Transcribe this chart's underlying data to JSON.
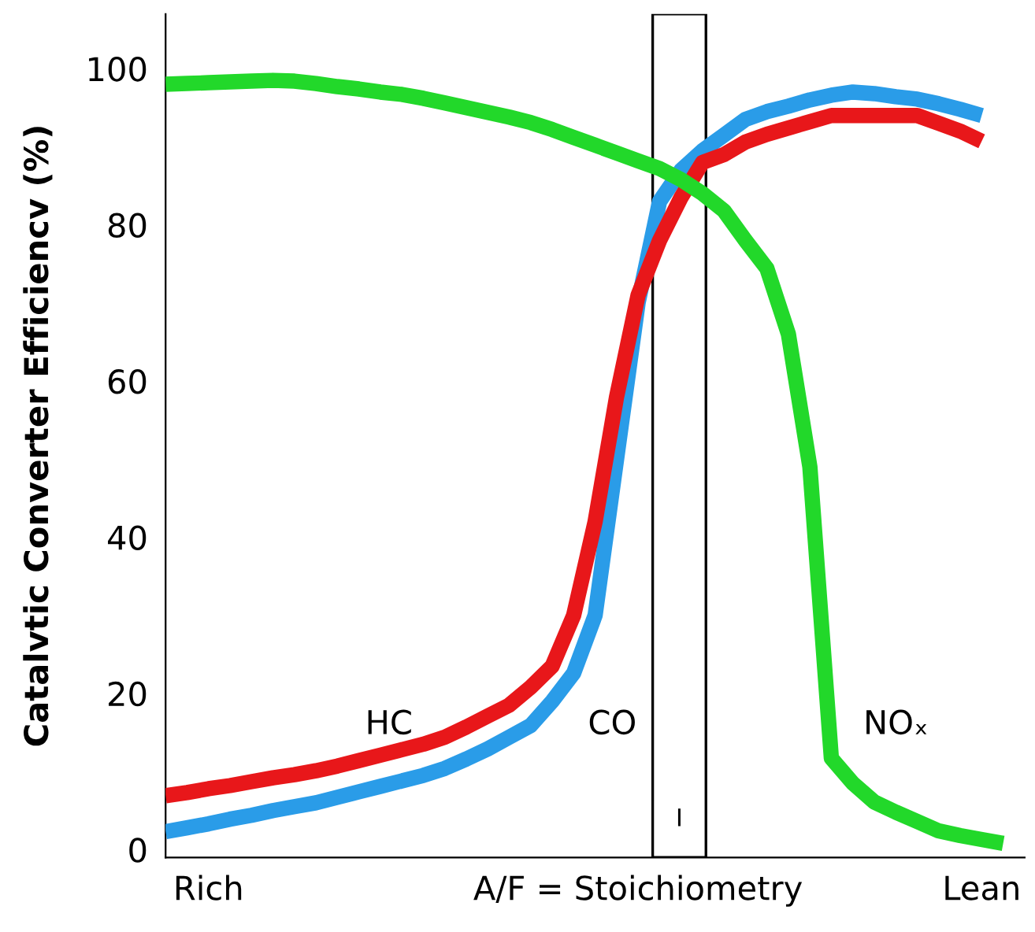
{
  "chart_data": {
    "type": "line",
    "ylabel": "Catalvtic Converter Efficiencv (%)",
    "categories": [
      null,
      null,
      "Rich",
      null,
      null,
      null,
      null,
      null,
      null,
      null,
      null,
      null,
      null,
      null,
      null,
      null,
      null,
      null,
      null,
      null,
      null,
      null,
      "A/F = Stoichiometry",
      null,
      null,
      null,
      null,
      null,
      null,
      null,
      null,
      null,
      null,
      null,
      null,
      null,
      null,
      null,
      "Lean",
      null,
      null
    ],
    "ylim": [
      -1,
      107
    ],
    "yticks": [
      0,
      20,
      40,
      60,
      80,
      100
    ],
    "grid": false,
    "legend": false,
    "line_style": "solid",
    "marker": "none",
    "series": [
      {
        "color": "#2a9ce8",
        "values": [
          2.3,
          2.8,
          3.3,
          3.9,
          4.4,
          5,
          5.5,
          6,
          6.7,
          7.4,
          8.1,
          8.8,
          9.5,
          10.4,
          11.6,
          12.9,
          14.4,
          15.9,
          19,
          22.6,
          30,
          50,
          70,
          83,
          87,
          89.5,
          91.5,
          93.5,
          94.5,
          95.2,
          96,
          96.6,
          97,
          96.8,
          96.4,
          96.1,
          95.5,
          94.8,
          94,
          null,
          null
        ]
      },
      {
        "color": "#e8171a",
        "values": [
          6.9,
          7.3,
          7.8,
          8.2,
          8.7,
          9.2,
          9.6,
          10.1,
          10.7,
          11.4,
          12.1,
          12.8,
          13.5,
          14.4,
          15.7,
          17.1,
          18.5,
          20.8,
          23.5,
          30,
          42,
          58,
          71,
          78,
          83.5,
          88,
          89,
          90.6,
          91.6,
          92.4,
          93.2,
          94,
          94,
          94,
          94,
          94,
          93,
          92,
          90.7,
          null,
          null
        ]
      },
      {
        "color": "#22d82a",
        "values": [
          98,
          98.1,
          98.2,
          98.3,
          98.4,
          98.5,
          98.4,
          98.1,
          97.7,
          97.4,
          97,
          96.7,
          96.2,
          95.6,
          95,
          94.4,
          93.8,
          93.1,
          92.2,
          91.2,
          90.2,
          89.2,
          88.2,
          87.2,
          85.8,
          84,
          81.8,
          78,
          74.4,
          66,
          49,
          11.7,
          8.5,
          6.1,
          4.8,
          3.6,
          2.4,
          1.8,
          1.3,
          0.8,
          null
        ]
      }
    ],
    "annotations": [
      "HC",
      "CO",
      "NOₓ",
      "I"
    ]
  }
}
